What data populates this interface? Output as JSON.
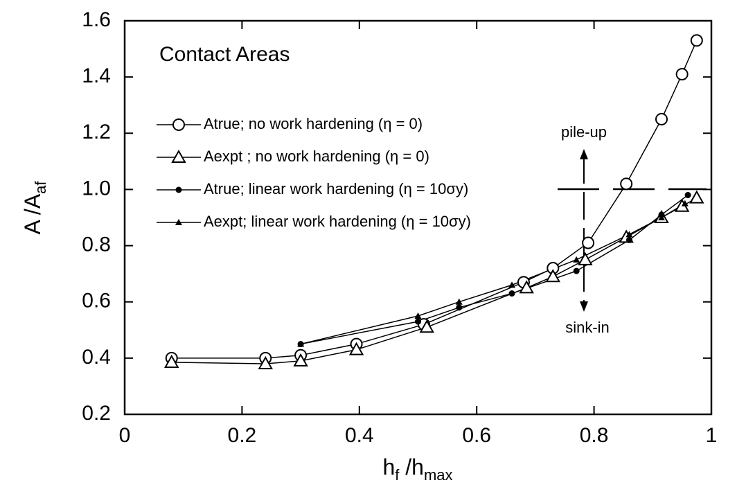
{
  "chart_data": {
    "type": "line",
    "title": "Contact Areas",
    "xlabel": [
      {
        "text": "h"
      },
      {
        "text": "f",
        "sub": true
      },
      {
        "text": " /h"
      },
      {
        "text": "max",
        "sub": true
      }
    ],
    "ylabel": [
      {
        "text": "A /A"
      },
      {
        "text": "af",
        "sub": true
      }
    ],
    "xlim": [
      0,
      1
    ],
    "ylim": [
      0.2,
      1.6
    ],
    "xticks": [
      0,
      0.2,
      0.4,
      0.6,
      0.8,
      1
    ],
    "yticks": [
      0.2,
      0.4,
      0.6,
      0.8,
      {
        "value": 1,
        "label": "1.0"
      },
      1.2,
      1.4,
      1.6
    ],
    "annotations": [
      "pile-up",
      "sink-in"
    ],
    "series": [
      {
        "name": "Atrue; no work hardening (η = 0)",
        "marker": "open-circle",
        "color": "#000000",
        "x": [
          0.08,
          0.24,
          0.3,
          0.395,
          0.51,
          0.68,
          0.73,
          0.79,
          0.855,
          0.915,
          0.95,
          0.975
        ],
        "values": [
          0.4,
          0.4,
          0.41,
          0.45,
          0.52,
          0.67,
          0.72,
          0.81,
          1.02,
          1.25,
          1.41,
          1.53
        ]
      },
      {
        "name": "Aexpt ; no work hardening (η = 0)",
        "marker": "open-triangle",
        "color": "#000000",
        "x": [
          0.08,
          0.24,
          0.3,
          0.395,
          0.515,
          0.685,
          0.73,
          0.785,
          0.855,
          0.915,
          0.95,
          0.975
        ],
        "values": [
          0.385,
          0.38,
          0.39,
          0.43,
          0.51,
          0.65,
          0.69,
          0.75,
          0.83,
          0.9,
          0.94,
          0.97
        ]
      },
      {
        "name": "Atrue; linear work hardening (η = 10σy)",
        "marker": "filled-circle",
        "color": "#000000",
        "x": [
          0.3,
          0.5,
          0.57,
          0.66,
          0.77,
          0.86,
          0.915,
          0.96
        ],
        "values": [
          0.45,
          0.53,
          0.58,
          0.63,
          0.71,
          0.82,
          0.91,
          0.98
        ]
      },
      {
        "name": "Aexpt; linear work hardening (η = 10σy)",
        "marker": "filled-triangle",
        "color": "#000000",
        "x": [
          0.3,
          0.5,
          0.57,
          0.66,
          0.77,
          0.86,
          0.915,
          0.955
        ],
        "values": [
          0.45,
          0.55,
          0.6,
          0.66,
          0.75,
          0.84,
          0.9,
          0.95
        ]
      }
    ]
  }
}
